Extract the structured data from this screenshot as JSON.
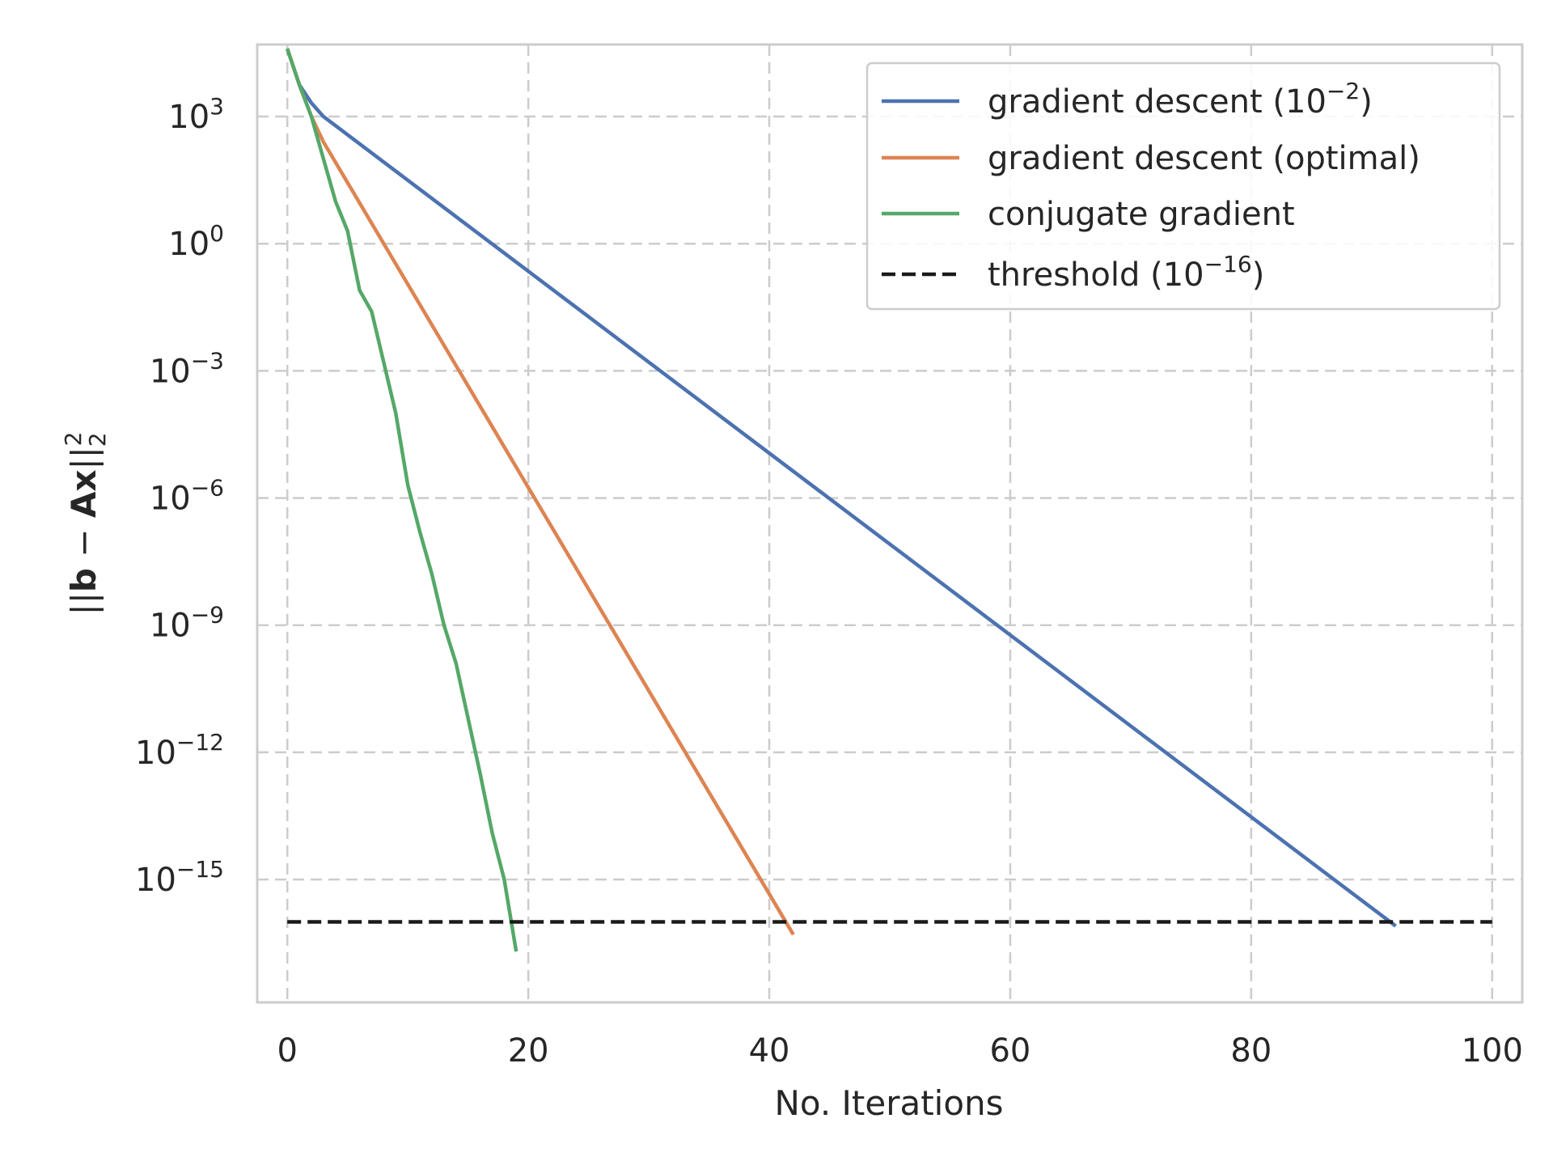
{
  "chart_data": {
    "type": "line",
    "xlabel": "No. Iterations",
    "ylabel_parts": [
      "||",
      "b",
      " − ",
      "A",
      "x",
      "||",
      "2",
      "2"
    ],
    "xlim": [
      -2.5,
      102.5
    ],
    "xticks": [
      0,
      20,
      40,
      60,
      80,
      100
    ],
    "xtick_labels": [
      "0",
      "20",
      "40",
      "60",
      "80",
      "100"
    ],
    "ylim_log10": [
      -17.9,
      4.7
    ],
    "yscale": "log",
    "yticks_log10": [
      3,
      0,
      -3,
      -6,
      -9,
      -12,
      -15
    ],
    "ytick_labels": [
      {
        "base": "10",
        "exp": "3"
      },
      {
        "base": "10",
        "exp": "0"
      },
      {
        "base": "10",
        "exp": "−3"
      },
      {
        "base": "10",
        "exp": "−6"
      },
      {
        "base": "10",
        "exp": "−9"
      },
      {
        "base": "10",
        "exp": "−12"
      },
      {
        "base": "10",
        "exp": "−15"
      }
    ],
    "grid": true,
    "grid_style": "dashed",
    "legend_position": "upper-right",
    "series": [
      {
        "name": "gradient descent (10",
        "name_sup": "−2",
        "name_suffix": ")",
        "color": "#4c72b0",
        "style": "solid",
        "x": [
          0,
          1,
          2,
          3,
          92
        ],
        "log10_y": [
          4.6,
          3.75,
          3.32,
          3.0,
          -16.1
        ]
      },
      {
        "name": "gradient descent (optimal)",
        "color": "#dd8452",
        "style": "solid",
        "x": [
          0,
          1,
          2,
          3,
          42
        ],
        "log10_y": [
          4.6,
          3.75,
          3.0,
          2.4,
          -16.3
        ]
      },
      {
        "name": "conjugate gradient",
        "color": "#55a868",
        "style": "solid",
        "x": [
          0,
          1,
          2,
          3,
          4,
          5,
          6,
          7,
          8,
          9,
          10,
          11,
          12,
          13,
          14,
          15,
          16,
          17,
          18,
          19
        ],
        "log10_y": [
          4.6,
          3.75,
          3.0,
          2.0,
          1.0,
          0.3,
          -1.1,
          -1.6,
          -2.8,
          -4.0,
          -5.7,
          -6.8,
          -7.8,
          -9.0,
          -9.9,
          -11.2,
          -12.5,
          -13.9,
          -15.0,
          -16.7
        ]
      },
      {
        "name": "threshold (10",
        "name_sup": "−16",
        "name_suffix": ")",
        "color": "#1a1a1a",
        "style": "dashed",
        "x": [
          0,
          100
        ],
        "log10_y": [
          -16,
          -16
        ]
      }
    ]
  }
}
